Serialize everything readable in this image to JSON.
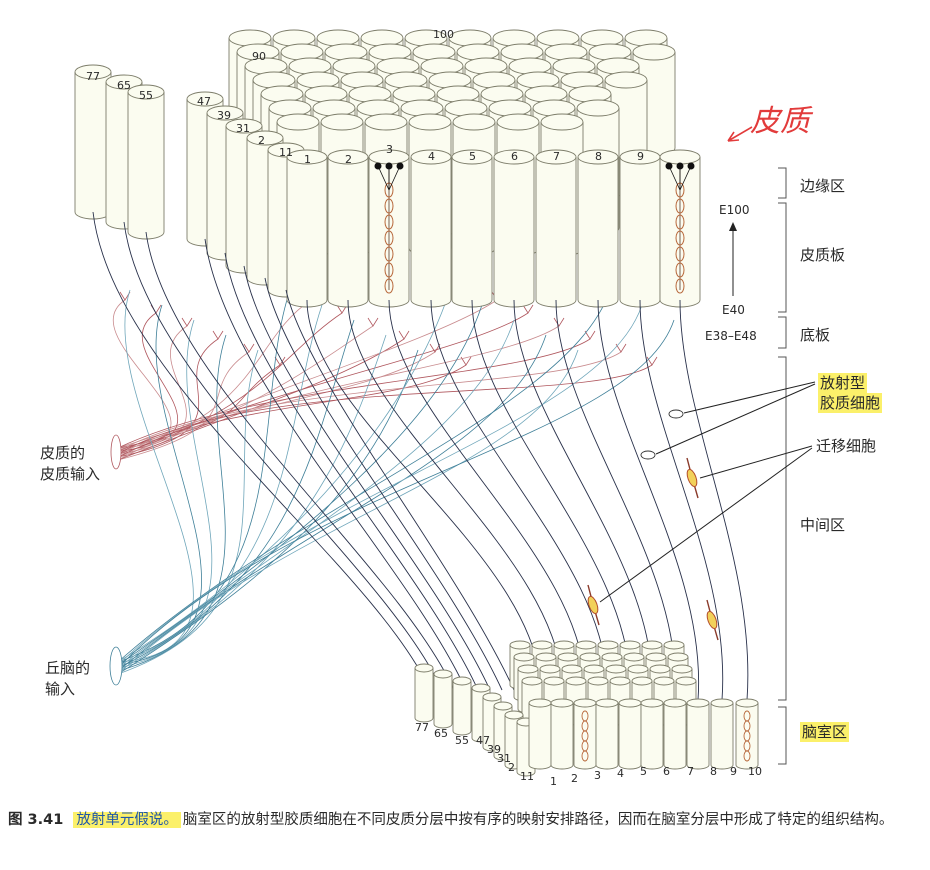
{
  "annotation": {
    "handwritten": "皮质"
  },
  "column_numbers": {
    "top_left_stack": [
      "77",
      "65",
      "55",
      "47",
      "39",
      "31",
      "2",
      "11"
    ],
    "top_back": [
      "90",
      "100"
    ],
    "top_front": [
      "1",
      "2",
      "3",
      "4",
      "5",
      "6",
      "7",
      "8",
      "9"
    ],
    "bottom_left_stack": [
      "77",
      "65",
      "55",
      "47",
      "39",
      "31",
      "2",
      "11"
    ],
    "bottom_front": [
      "1",
      "2",
      "3",
      "4",
      "5",
      "6",
      "7",
      "8",
      "9",
      "10"
    ]
  },
  "layers": {
    "marginal": "边缘区",
    "cortical_plate": "皮质板",
    "subplate": "底板",
    "intermediate": "中间区",
    "ventricular": "脑室区"
  },
  "stages": {
    "e100": "E100",
    "e40": "E40",
    "e38_48": "E38–E48"
  },
  "labels": {
    "radial_glia_1": "放射型",
    "radial_glia_2": "胶质细胞",
    "migrating": "迁移细胞",
    "cortical_input_1": "皮质的",
    "cortical_input_2": "皮质输入",
    "thalamic_input_1": "丘脑的",
    "thalamic_input_2": "输入"
  },
  "caption": {
    "fig_number": "图 3.41",
    "title": "放射单元假说。",
    "body": "脑室区的放射型胶质细胞在不同皮质分层中按有序的映射安排路径，因而在脑室分层中形成了特定的组织结构。"
  }
}
